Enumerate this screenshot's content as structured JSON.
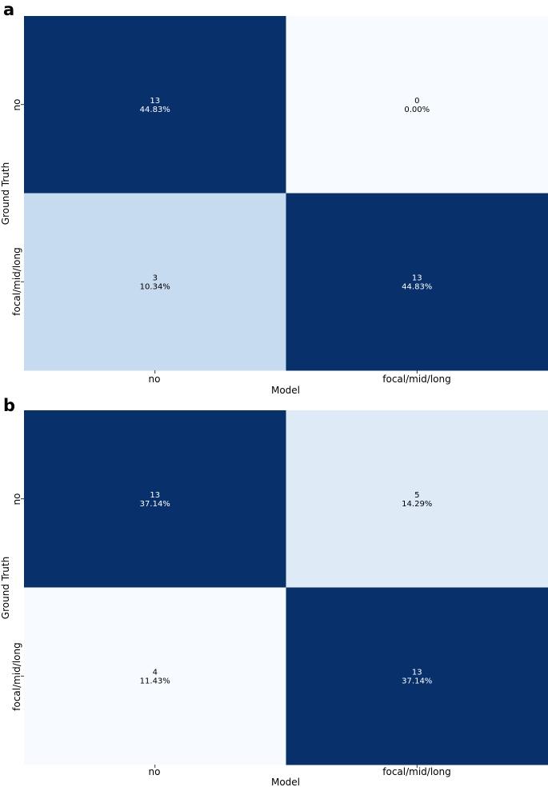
{
  "chart_data": [
    {
      "type": "heatmap",
      "panel": "a",
      "xlabel": "Model",
      "ylabel": "Ground Truth",
      "x_categories": [
        "no",
        "focal/mid/long"
      ],
      "y_categories": [
        "no",
        "focal/mid/long"
      ],
      "values": [
        [
          13,
          0
        ],
        [
          3,
          13
        ]
      ],
      "percent_labels": [
        [
          "44.83%",
          "0.00%"
        ],
        [
          "10.34%",
          "44.83%"
        ]
      ],
      "colormap": "Blues",
      "colors": [
        [
          "#08306b",
          "#f7fbff"
        ],
        [
          "#c6dbef",
          "#08306b"
        ]
      ],
      "text_colors": [
        [
          "#ffffff",
          "#000000"
        ],
        [
          "#000000",
          "#ffffff"
        ]
      ]
    },
    {
      "type": "heatmap",
      "panel": "b",
      "xlabel": "Model",
      "ylabel": "Ground Truth",
      "x_categories": [
        "no",
        "focal/mid/long"
      ],
      "y_categories": [
        "no",
        "focal/mid/long"
      ],
      "values": [
        [
          13,
          5
        ],
        [
          4,
          13
        ]
      ],
      "percent_labels": [
        [
          "37.14%",
          "14.29%"
        ],
        [
          "11.43%",
          "37.14%"
        ]
      ],
      "colormap": "Blues",
      "colors": [
        [
          "#08306b",
          "#deebf7"
        ],
        [
          "#f7fbff",
          "#08306b"
        ]
      ],
      "text_colors": [
        [
          "#ffffff",
          "#000000"
        ],
        [
          "#000000",
          "#ffffff"
        ]
      ]
    }
  ]
}
